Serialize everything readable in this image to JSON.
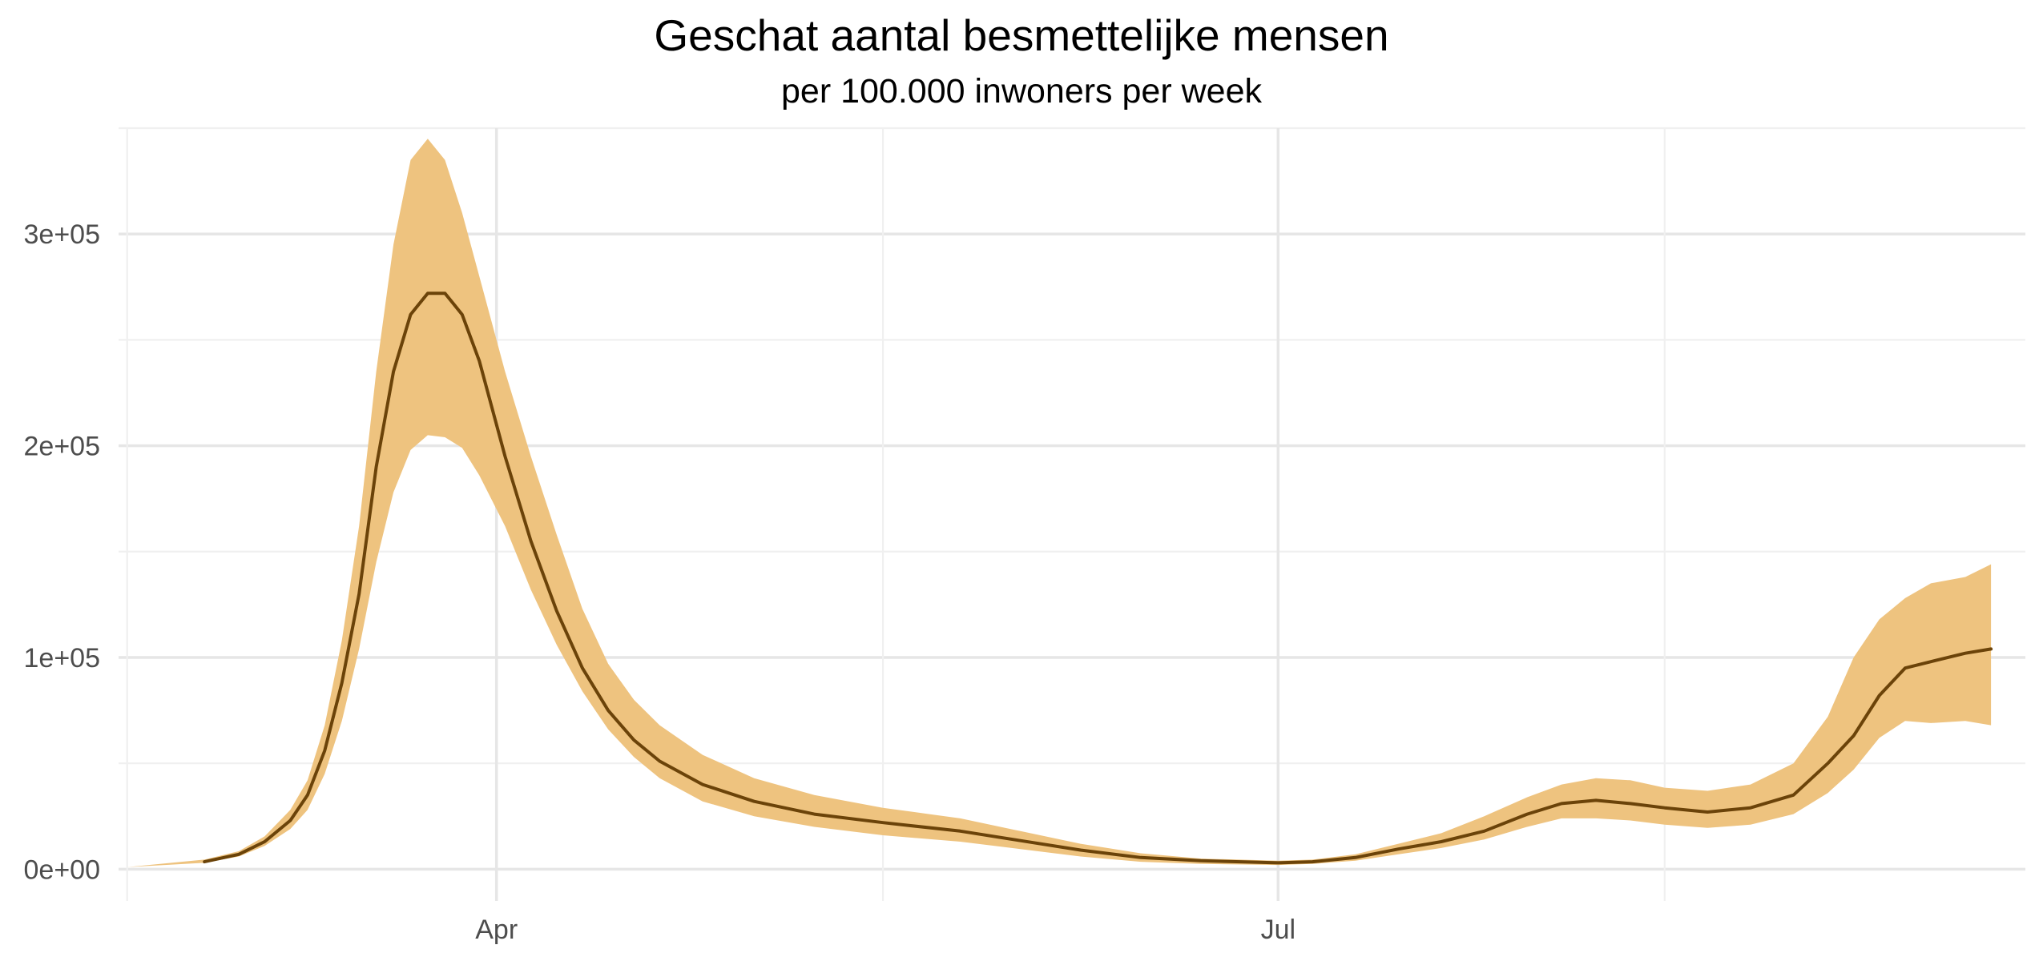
{
  "chart_data": {
    "type": "area",
    "title": "Geschat aantal besmettelijke mensen",
    "subtitle": "per 100.000 inwoners per week",
    "xlabel": "",
    "ylabel": "",
    "x_axis": {
      "type": "date",
      "range": [
        "2020-02-17",
        "2020-09-26"
      ],
      "labelled_ticks": [
        {
          "date": "2020-04-01",
          "label": "Apr"
        },
        {
          "date": "2020-07-01",
          "label": "Jul"
        }
      ],
      "unlabelled_gridlines": [
        "2020-05-16",
        "2020-08-15"
      ]
    },
    "y_axis": {
      "range": [
        -15000,
        350000
      ],
      "ticks": [
        {
          "value": 0,
          "label": "0e+00"
        },
        {
          "value": 100000,
          "label": "1e+05"
        },
        {
          "value": 200000,
          "label": "2e+05"
        },
        {
          "value": 300000,
          "label": "3e+05"
        }
      ],
      "minor_gridlines": [
        50000,
        150000,
        250000,
        350000
      ]
    },
    "grid": true,
    "legend": "none",
    "colors": {
      "line": "#6b4309",
      "band": "#eec37f",
      "grid_major": "#e6e6e6",
      "grid_minor": "#f0f0f0"
    },
    "series": [
      {
        "type": "line",
        "points": [
          [
            "2020-02-27",
            3500
          ],
          [
            "2020-03-02",
            7000
          ],
          [
            "2020-03-05",
            13000
          ],
          [
            "2020-03-08",
            23000
          ],
          [
            "2020-03-10",
            35000
          ],
          [
            "2020-03-12",
            56000
          ],
          [
            "2020-03-14",
            88000
          ],
          [
            "2020-03-16",
            130000
          ],
          [
            "2020-03-18",
            190000
          ],
          [
            "2020-03-20",
            235000
          ],
          [
            "2020-03-22",
            262000
          ],
          [
            "2020-03-24",
            272000
          ],
          [
            "2020-03-26",
            272000
          ],
          [
            "2020-03-28",
            262000
          ],
          [
            "2020-03-30",
            240000
          ],
          [
            "2020-04-02",
            195000
          ],
          [
            "2020-04-05",
            155000
          ],
          [
            "2020-04-08",
            122000
          ],
          [
            "2020-04-11",
            95000
          ],
          [
            "2020-04-14",
            75000
          ],
          [
            "2020-04-17",
            61000
          ],
          [
            "2020-04-20",
            51000
          ],
          [
            "2020-04-25",
            40000
          ],
          [
            "2020-05-01",
            32000
          ],
          [
            "2020-05-08",
            26000
          ],
          [
            "2020-05-16",
            22000
          ],
          [
            "2020-05-25",
            18000
          ],
          [
            "2020-06-01",
            13500
          ],
          [
            "2020-06-08",
            9000
          ],
          [
            "2020-06-15",
            5500
          ],
          [
            "2020-06-22",
            4000
          ],
          [
            "2020-07-01",
            3000
          ],
          [
            "2020-07-05",
            3500
          ],
          [
            "2020-07-10",
            5500
          ],
          [
            "2020-07-15",
            9500
          ],
          [
            "2020-07-20",
            13000
          ],
          [
            "2020-07-25",
            18000
          ],
          [
            "2020-07-30",
            26000
          ],
          [
            "2020-08-03",
            31000
          ],
          [
            "2020-08-07",
            32500
          ],
          [
            "2020-08-11",
            31000
          ],
          [
            "2020-08-15",
            29000
          ],
          [
            "2020-08-20",
            27000
          ],
          [
            "2020-08-25",
            29000
          ],
          [
            "2020-08-30",
            35000
          ],
          [
            "2020-09-03",
            50000
          ],
          [
            "2020-09-06",
            63000
          ],
          [
            "2020-09-09",
            82000
          ],
          [
            "2020-09-12",
            95000
          ],
          [
            "2020-09-15",
            98000
          ],
          [
            "2020-09-19",
            102000
          ],
          [
            "2020-09-22",
            104000
          ]
        ]
      },
      {
        "type": "band",
        "lower": [
          [
            "2020-02-18",
            1000
          ],
          [
            "2020-02-27",
            3000
          ],
          [
            "2020-03-02",
            6000
          ],
          [
            "2020-03-05",
            11000
          ],
          [
            "2020-03-08",
            19000
          ],
          [
            "2020-03-10",
            28000
          ],
          [
            "2020-03-12",
            45000
          ],
          [
            "2020-03-14",
            70000
          ],
          [
            "2020-03-16",
            104000
          ],
          [
            "2020-03-18",
            145000
          ],
          [
            "2020-03-20",
            178000
          ],
          [
            "2020-03-22",
            198000
          ],
          [
            "2020-03-24",
            205000
          ],
          [
            "2020-03-26",
            204000
          ],
          [
            "2020-03-28",
            199000
          ],
          [
            "2020-03-30",
            186000
          ],
          [
            "2020-04-02",
            162000
          ],
          [
            "2020-04-05",
            132000
          ],
          [
            "2020-04-08",
            106000
          ],
          [
            "2020-04-11",
            84000
          ],
          [
            "2020-04-14",
            66000
          ],
          [
            "2020-04-17",
            53000
          ],
          [
            "2020-04-20",
            43000
          ],
          [
            "2020-04-25",
            32000
          ],
          [
            "2020-05-01",
            25000
          ],
          [
            "2020-05-08",
            20000
          ],
          [
            "2020-05-16",
            16000
          ],
          [
            "2020-05-25",
            13000
          ],
          [
            "2020-06-01",
            9500
          ],
          [
            "2020-06-08",
            6000
          ],
          [
            "2020-06-15",
            3500
          ],
          [
            "2020-06-22",
            2500
          ],
          [
            "2020-07-01",
            2000
          ],
          [
            "2020-07-05",
            2500
          ],
          [
            "2020-07-10",
            4000
          ],
          [
            "2020-07-15",
            7000
          ],
          [
            "2020-07-20",
            10000
          ],
          [
            "2020-07-25",
            14000
          ],
          [
            "2020-07-30",
            20000
          ],
          [
            "2020-08-03",
            24000
          ],
          [
            "2020-08-07",
            24000
          ],
          [
            "2020-08-11",
            23000
          ],
          [
            "2020-08-15",
            21000
          ],
          [
            "2020-08-20",
            19500
          ],
          [
            "2020-08-25",
            21000
          ],
          [
            "2020-08-30",
            26000
          ],
          [
            "2020-09-03",
            36000
          ],
          [
            "2020-09-06",
            47000
          ],
          [
            "2020-09-09",
            62000
          ],
          [
            "2020-09-12",
            70000
          ],
          [
            "2020-09-15",
            69000
          ],
          [
            "2020-09-19",
            70000
          ],
          [
            "2020-09-22",
            68000
          ]
        ],
        "upper": [
          [
            "2020-02-18",
            1000
          ],
          [
            "2020-02-27",
            4500
          ],
          [
            "2020-03-02",
            8500
          ],
          [
            "2020-03-05",
            15500
          ],
          [
            "2020-03-08",
            28000
          ],
          [
            "2020-03-10",
            42000
          ],
          [
            "2020-03-12",
            68000
          ],
          [
            "2020-03-14",
            108000
          ],
          [
            "2020-03-16",
            162000
          ],
          [
            "2020-03-18",
            235000
          ],
          [
            "2020-03-20",
            295000
          ],
          [
            "2020-03-22",
            335000
          ],
          [
            "2020-03-24",
            345000
          ],
          [
            "2020-03-26",
            335000
          ],
          [
            "2020-03-28",
            310000
          ],
          [
            "2020-03-30",
            280000
          ],
          [
            "2020-04-02",
            235000
          ],
          [
            "2020-04-05",
            195000
          ],
          [
            "2020-04-08",
            158000
          ],
          [
            "2020-04-11",
            123000
          ],
          [
            "2020-04-14",
            97000
          ],
          [
            "2020-04-17",
            80000
          ],
          [
            "2020-04-20",
            68000
          ],
          [
            "2020-04-25",
            54000
          ],
          [
            "2020-05-01",
            43000
          ],
          [
            "2020-05-08",
            35000
          ],
          [
            "2020-05-16",
            29000
          ],
          [
            "2020-05-25",
            24000
          ],
          [
            "2020-06-01",
            18000
          ],
          [
            "2020-06-08",
            12000
          ],
          [
            "2020-06-15",
            7500
          ],
          [
            "2020-06-22",
            5000
          ],
          [
            "2020-07-01",
            4000
          ],
          [
            "2020-07-05",
            4500
          ],
          [
            "2020-07-10",
            7000
          ],
          [
            "2020-07-15",
            12000
          ],
          [
            "2020-07-20",
            17000
          ],
          [
            "2020-07-25",
            25000
          ],
          [
            "2020-07-30",
            34000
          ],
          [
            "2020-08-03",
            40000
          ],
          [
            "2020-08-07",
            43000
          ],
          [
            "2020-08-11",
            42000
          ],
          [
            "2020-08-15",
            38500
          ],
          [
            "2020-08-20",
            37000
          ],
          [
            "2020-08-25",
            40000
          ],
          [
            "2020-08-30",
            50000
          ],
          [
            "2020-09-03",
            72000
          ],
          [
            "2020-09-06",
            100000
          ],
          [
            "2020-09-09",
            118000
          ],
          [
            "2020-09-12",
            128000
          ],
          [
            "2020-09-15",
            135000
          ],
          [
            "2020-09-19",
            138000
          ],
          [
            "2020-09-22",
            144000
          ]
        ]
      }
    ]
  }
}
